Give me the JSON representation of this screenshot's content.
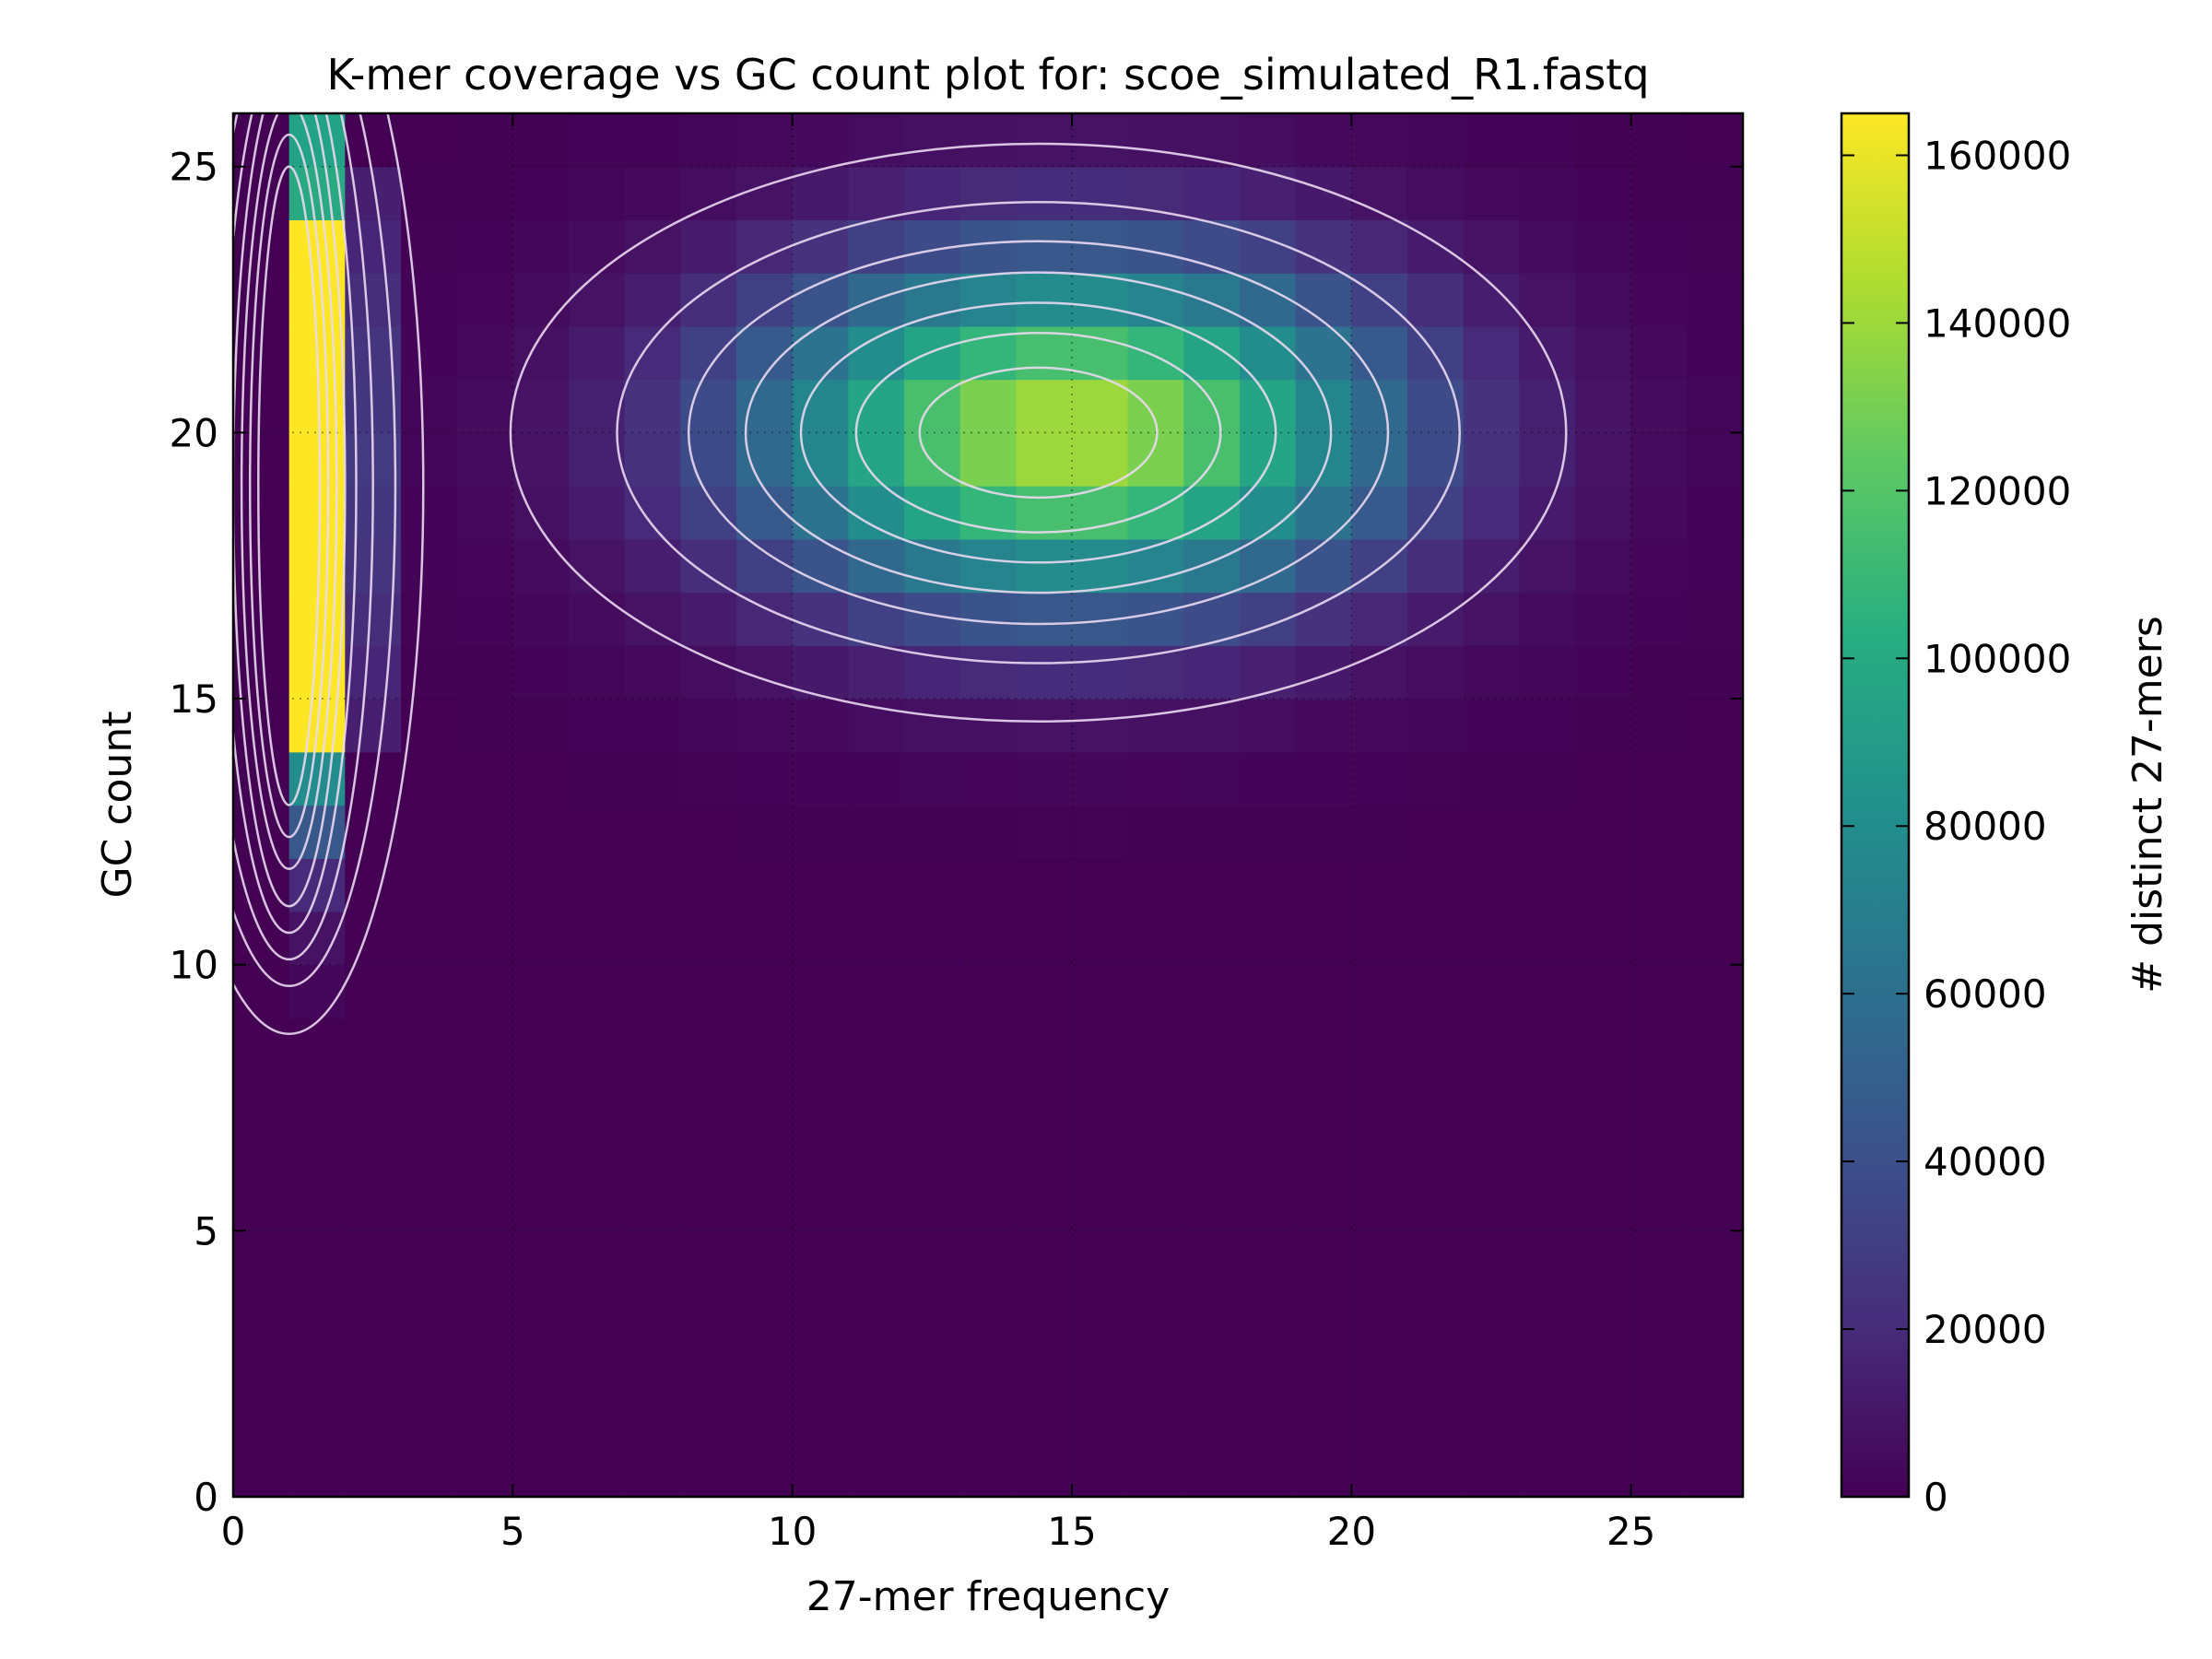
{
  "chart_data": {
    "type": "heatmap",
    "title": "K-mer coverage vs GC count plot for: scoe_simulated_R1.fastq",
    "xlabel": "27-mer frequency",
    "ylabel": "GC count",
    "colorbar_label": "# distinct 27-mers",
    "colormap": "viridis",
    "xlim": [
      0,
      27
    ],
    "ylim": [
      0,
      26
    ],
    "clim": [
      0,
      165000
    ],
    "x_ticks": [
      "0",
      "5",
      "10",
      "15",
      "20",
      "25"
    ],
    "y_ticks": [
      "0",
      "5",
      "10",
      "15",
      "20",
      "25"
    ],
    "colorbar_ticks": [
      "0",
      "20000",
      "40000",
      "60000",
      "80000",
      "100000",
      "120000",
      "140000",
      "160000"
    ],
    "grid": true,
    "overlay": "contour lines",
    "error_peak": {
      "x_bin": 1,
      "gc_plateau": [
        14,
        24
      ],
      "plateau_value": 165000,
      "gc_edges": {
        "13": 80000,
        "24": 100000,
        "12": 45000,
        "25": 95000,
        "11": 20000,
        "10": 8000,
        "9": 3000
      }
    },
    "main_peak": {
      "center_x": 15,
      "center_gc": 20,
      "peak_value": 145000,
      "spread_x": 4.0,
      "spread_gc": 2.3
    }
  }
}
